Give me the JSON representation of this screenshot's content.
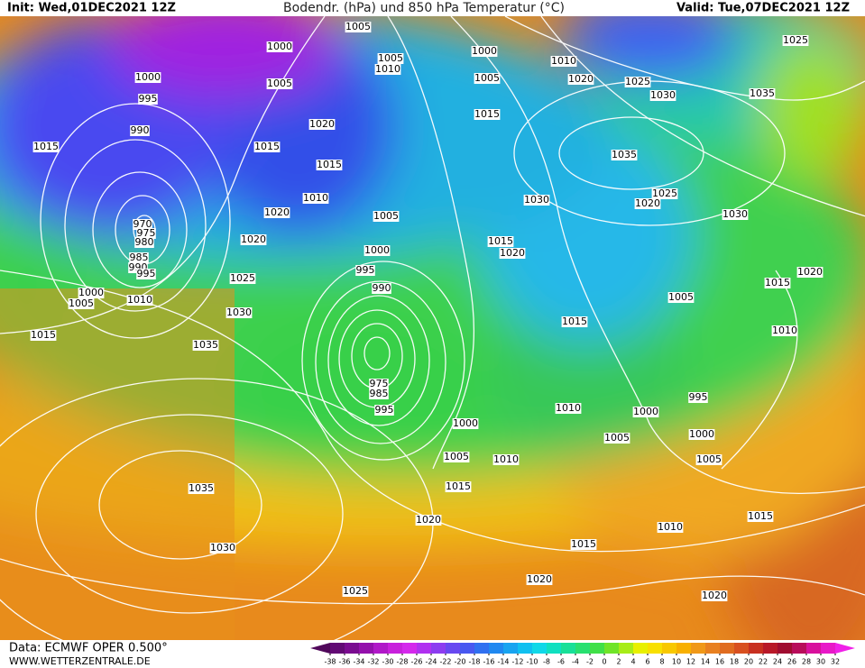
{
  "header": {
    "init": "Init: Wed,01DEC2021 12Z",
    "title": "Bodendr. (hPa) und 850 hPa Temperatur (°C)",
    "valid": "Valid: Tue,07DEC2021 12Z"
  },
  "footer": {
    "source": "Data: ECMWF OPER 0.500°",
    "site": "WWW.WETTERZENTRALE.DE"
  },
  "isobar_labels": [
    1005,
    1000,
    1005,
    1010,
    1000,
    1010,
    1025,
    1000,
    1005,
    1005,
    1020,
    1025,
    1030,
    1035,
    995,
    1015,
    990,
    1020,
    1015,
    1015,
    1015,
    1035,
    1010,
    1030,
    1025,
    1020,
    1030,
    1005,
    1020,
    970,
    975,
    980,
    1020,
    1015,
    1000,
    1020,
    985,
    990,
    995,
    995,
    1020,
    1015,
    1025,
    990,
    1000,
    1010,
    1005,
    1005,
    1030,
    1015,
    1010,
    1015,
    1035,
    975,
    985,
    995,
    995,
    1010,
    1000,
    1000,
    1005,
    1000,
    1005,
    1010,
    1005,
    1015,
    1035,
    1020,
    1015,
    1010,
    1030,
    1015,
    1020,
    1025,
    1020
  ],
  "colorbar": {
    "ticks": [
      -38,
      -36,
      -34,
      -32,
      -30,
      -28,
      -26,
      -24,
      -22,
      -20,
      -18,
      -16,
      -14,
      -12,
      -10,
      -8,
      -6,
      -4,
      -2,
      0,
      2,
      4,
      6,
      8,
      10,
      12,
      14,
      16,
      18,
      20,
      22,
      24,
      26,
      28,
      30,
      32
    ],
    "colors": [
      "#50085a",
      "#620a74",
      "#7a0c90",
      "#9410ac",
      "#b018c8",
      "#c820dc",
      "#d428ec",
      "#b030f0",
      "#8c3cf0",
      "#6848f0",
      "#4858f0",
      "#3070f0",
      "#2088f0",
      "#18a4f0",
      "#10c0f0",
      "#10d8e8",
      "#10e0c0",
      "#18e098",
      "#28e070",
      "#40e048",
      "#70e428",
      "#a8ec18",
      "#e8f000",
      "#f8e000",
      "#f8c800",
      "#f8b000",
      "#f09818",
      "#e88020",
      "#e06c20",
      "#d85020",
      "#c83020",
      "#b81828",
      "#a00c30",
      "#b80c5a",
      "#d8109c",
      "#e818c8",
      "#f020e8"
    ]
  }
}
